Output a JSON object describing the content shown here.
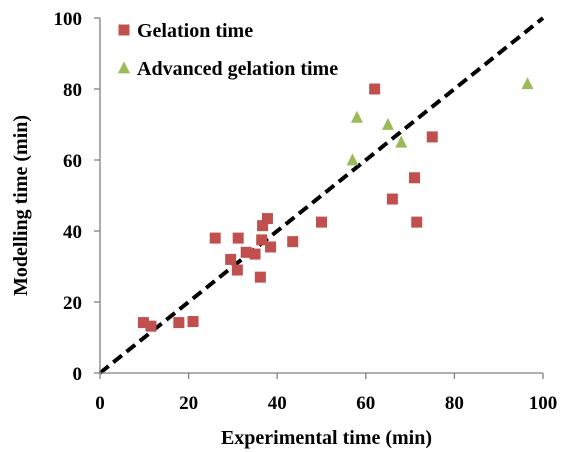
{
  "chart_data": {
    "type": "scatter",
    "xlabel": "Experimental time (min)",
    "ylabel": "Modelling time (min)",
    "xlim": [
      0,
      100
    ],
    "ylim": [
      0,
      100
    ],
    "xticks": [
      0,
      20,
      40,
      60,
      80,
      100
    ],
    "yticks": [
      0,
      20,
      40,
      60,
      80,
      100
    ],
    "grid": false,
    "legend_position": "top-left",
    "series": [
      {
        "name": "Gelation time",
        "marker": "square",
        "color": "#c0504d",
        "points": [
          [
            9.8,
            14.2
          ],
          [
            11.5,
            13.2
          ],
          [
            17.8,
            14.2
          ],
          [
            21.0,
            14.5
          ],
          [
            26.0,
            38.0
          ],
          [
            29.5,
            32.0
          ],
          [
            31.0,
            29.0
          ],
          [
            31.2,
            38.0
          ],
          [
            33.0,
            34.0
          ],
          [
            35.0,
            33.5
          ],
          [
            36.2,
            27.0
          ],
          [
            36.5,
            37.5
          ],
          [
            36.7,
            41.5
          ],
          [
            37.8,
            43.5
          ],
          [
            38.5,
            35.5
          ],
          [
            43.5,
            37.0
          ],
          [
            50.0,
            42.5
          ],
          [
            62.0,
            80.0
          ],
          [
            66.0,
            49.0
          ],
          [
            71.0,
            55.0
          ],
          [
            71.5,
            42.5
          ],
          [
            75.0,
            66.5
          ]
        ]
      },
      {
        "name": "Advanced gelation time",
        "marker": "triangle",
        "color": "#9bbb59",
        "points": [
          [
            57.0,
            60.0
          ],
          [
            58.0,
            72.0
          ],
          [
            65.0,
            70.0
          ],
          [
            68.0,
            65.0
          ],
          [
            96.5,
            81.5
          ]
        ]
      }
    ],
    "reference_line": {
      "label": "",
      "from": [
        0,
        0
      ],
      "to": [
        100,
        100
      ],
      "style": "dashed",
      "color": "#000000"
    }
  }
}
